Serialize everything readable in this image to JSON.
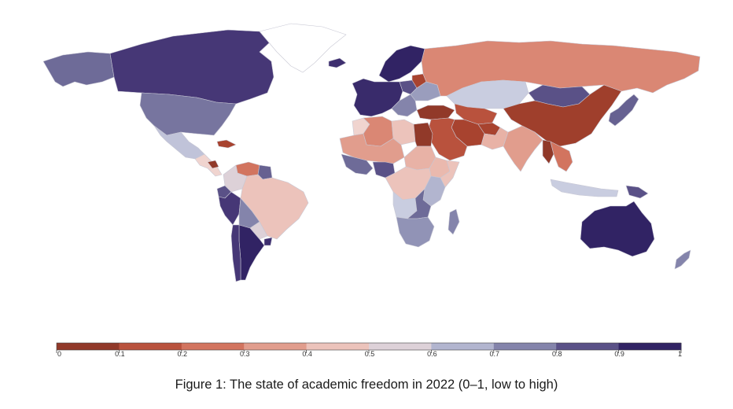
{
  "caption": "Figure 1: The state of academic freedom in 2022 (0–1, low to high)",
  "legend": {
    "ticks": [
      "0",
      "0.1",
      "0.2",
      "0.3",
      "0.4",
      "0.5",
      "0.6",
      "0.7",
      "0.8",
      "0.9",
      "1"
    ],
    "colors": [
      "#7a2f22",
      "#a8432f",
      "#c9614a",
      "#da8774",
      "#e8b2a6",
      "#f0d4cf",
      "#c9cde0",
      "#9a9dbd",
      "#6e6b98",
      "#463776",
      "#1c0f52"
    ],
    "low_color": "#7a2f22",
    "mid_color": "#eeeef2",
    "high_color": "#1c0f52"
  },
  "map_data": {
    "indicator": "academic freedom",
    "year": "2022",
    "scale_min": 0,
    "scale_max": 1,
    "regions": [
      {
        "name": "canada",
        "value": 0.9
      },
      {
        "name": "alaska",
        "value": 0.8
      },
      {
        "name": "usa",
        "value": 0.78
      },
      {
        "name": "mexico",
        "value": 0.62
      },
      {
        "name": "cuba",
        "value": 0.1
      },
      {
        "name": "central-america",
        "value": 0.5
      },
      {
        "name": "nicaragua",
        "value": 0.05
      },
      {
        "name": "venezuela",
        "value": 0.25
      },
      {
        "name": "colombia",
        "value": 0.55
      },
      {
        "name": "guyana",
        "value": 0.82
      },
      {
        "name": "ecuador",
        "value": 0.85
      },
      {
        "name": "peru",
        "value": 0.9
      },
      {
        "name": "brazil",
        "value": 0.45
      },
      {
        "name": "bolivia",
        "value": 0.75
      },
      {
        "name": "paraguay",
        "value": 0.55
      },
      {
        "name": "chile",
        "value": 0.9
      },
      {
        "name": "argentina",
        "value": 0.95
      },
      {
        "name": "uruguay",
        "value": 0.92
      },
      {
        "name": "greenland",
        "value": null
      },
      {
        "name": "iceland",
        "value": 0.92
      },
      {
        "name": "scandinavia",
        "value": 0.95
      },
      {
        "name": "western-europe",
        "value": 0.93
      },
      {
        "name": "poland",
        "value": 0.85
      },
      {
        "name": "balkans",
        "value": 0.75
      },
      {
        "name": "belarus",
        "value": 0.1
      },
      {
        "name": "ukraine",
        "value": 0.7
      },
      {
        "name": "turkey",
        "value": 0.05
      },
      {
        "name": "russia",
        "value": 0.3
      },
      {
        "name": "kazakhstan",
        "value": 0.6
      },
      {
        "name": "mongolia",
        "value": 0.85
      },
      {
        "name": "central-asia",
        "value": 0.15
      },
      {
        "name": "china",
        "value": 0.08
      },
      {
        "name": "korea-japan",
        "value": 0.82
      },
      {
        "name": "iran",
        "value": 0.1
      },
      {
        "name": "middle-east",
        "value": 0.15
      },
      {
        "name": "afghanistan",
        "value": 0.1
      },
      {
        "name": "pakistan",
        "value": 0.4
      },
      {
        "name": "india",
        "value": 0.35
      },
      {
        "name": "southeast-asia",
        "value": 0.25
      },
      {
        "name": "myanmar",
        "value": 0.05
      },
      {
        "name": "indonesia",
        "value": 0.6
      },
      {
        "name": "png",
        "value": 0.85
      },
      {
        "name": "australia",
        "value": 0.95
      },
      {
        "name": "new-zealand",
        "value": 0.75
      },
      {
        "name": "morocco",
        "value": 0.5
      },
      {
        "name": "algeria",
        "value": 0.3
      },
      {
        "name": "libya",
        "value": 0.45
      },
      {
        "name": "egypt",
        "value": 0.05
      },
      {
        "name": "sahel",
        "value": 0.35
      },
      {
        "name": "west-africa",
        "value": 0.8
      },
      {
        "name": "nigeria",
        "value": 0.85
      },
      {
        "name": "sudan",
        "value": 0.4
      },
      {
        "name": "ethiopia",
        "value": 0.42
      },
      {
        "name": "somalia",
        "value": 0.45
      },
      {
        "name": "central-africa",
        "value": 0.45
      },
      {
        "name": "east-africa",
        "value": 0.65
      },
      {
        "name": "angola",
        "value": 0.6
      },
      {
        "name": "zambia",
        "value": 0.8
      },
      {
        "name": "southern-africa",
        "value": 0.72
      },
      {
        "name": "madagascar",
        "value": 0.75
      }
    ]
  }
}
